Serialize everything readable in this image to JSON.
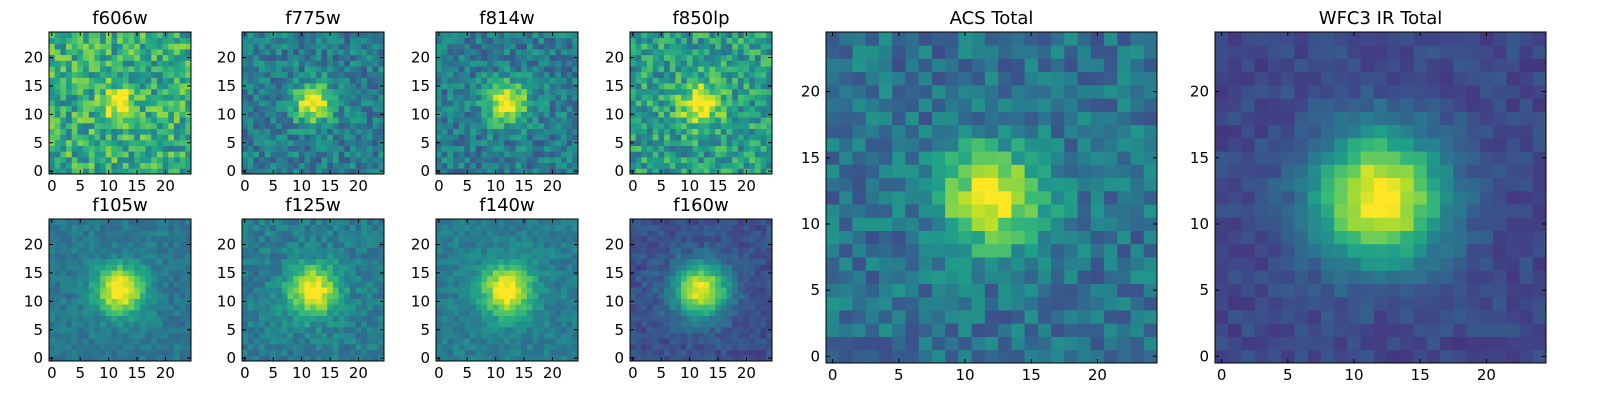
{
  "chart_data": [
    {
      "type": "heatmap",
      "title": "f606w",
      "xticks": [
        "0",
        "5",
        "10",
        "15",
        "20"
      ],
      "yticks": [
        "0",
        "5",
        "10",
        "15",
        "20"
      ],
      "xlim": [
        0,
        25
      ],
      "ylim": [
        0,
        25
      ],
      "grid": false,
      "center": [
        12,
        12
      ],
      "peak": 0.45,
      "sigma": 1.9,
      "base": 0.62,
      "noise": 0.22,
      "seed": 11
    },
    {
      "type": "heatmap",
      "title": "f775w",
      "xticks": [
        "0",
        "5",
        "10",
        "15",
        "20"
      ],
      "yticks": [
        "0",
        "5",
        "10",
        "15",
        "20"
      ],
      "xlim": [
        0,
        25
      ],
      "ylim": [
        0,
        25
      ],
      "grid": false,
      "center": [
        12,
        12
      ],
      "peak": 0.62,
      "sigma": 2.4,
      "base": 0.42,
      "noise": 0.16,
      "seed": 23
    },
    {
      "type": "heatmap",
      "title": "f814w",
      "xticks": [
        "0",
        "5",
        "10",
        "15",
        "20"
      ],
      "yticks": [
        "0",
        "5",
        "10",
        "15",
        "20"
      ],
      "xlim": [
        0,
        25
      ],
      "ylim": [
        0,
        25
      ],
      "grid": false,
      "center": [
        12,
        12
      ],
      "peak": 0.6,
      "sigma": 2.6,
      "base": 0.42,
      "noise": 0.16,
      "seed": 37
    },
    {
      "type": "heatmap",
      "title": "f850lp",
      "xticks": [
        "0",
        "5",
        "10",
        "15",
        "20"
      ],
      "yticks": [
        "0",
        "5",
        "10",
        "15",
        "20"
      ],
      "xlim": [
        0,
        25
      ],
      "ylim": [
        0,
        25
      ],
      "grid": false,
      "center": [
        12,
        12
      ],
      "peak": 0.5,
      "sigma": 2.6,
      "base": 0.55,
      "noise": 0.2,
      "seed": 41
    },
    {
      "type": "heatmap",
      "title": "f105w",
      "xticks": [
        "0",
        "5",
        "10",
        "15",
        "20"
      ],
      "yticks": [
        "0",
        "5",
        "10",
        "15",
        "20"
      ],
      "xlim": [
        0,
        25
      ],
      "ylim": [
        0,
        25
      ],
      "grid": false,
      "center": [
        12,
        12
      ],
      "peak": 0.65,
      "sigma": 3.0,
      "base": 0.4,
      "noise": 0.08,
      "seed": 53
    },
    {
      "type": "heatmap",
      "title": "f125w",
      "xticks": [
        "0",
        "5",
        "10",
        "15",
        "20"
      ],
      "yticks": [
        "0",
        "5",
        "10",
        "15",
        "20"
      ],
      "xlim": [
        0,
        25
      ],
      "ylim": [
        0,
        25
      ],
      "grid": false,
      "center": [
        12,
        12
      ],
      "peak": 0.62,
      "sigma": 3.1,
      "base": 0.42,
      "noise": 0.1,
      "seed": 67
    },
    {
      "type": "heatmap",
      "title": "f140w",
      "xticks": [
        "0",
        "5",
        "10",
        "15",
        "20"
      ],
      "yticks": [
        "0",
        "5",
        "10",
        "15",
        "20"
      ],
      "xlim": [
        0,
        25
      ],
      "ylim": [
        0,
        25
      ],
      "grid": false,
      "center": [
        12,
        12
      ],
      "peak": 0.62,
      "sigma": 3.2,
      "base": 0.42,
      "noise": 0.08,
      "seed": 71
    },
    {
      "type": "heatmap",
      "title": "f160w",
      "xticks": [
        "0",
        "5",
        "10",
        "15",
        "20"
      ],
      "yticks": [
        "0",
        "5",
        "10",
        "15",
        "20"
      ],
      "xlim": [
        0,
        25
      ],
      "ylim": [
        0,
        25
      ],
      "grid": false,
      "center": [
        12,
        12
      ],
      "peak": 0.75,
      "sigma": 3.3,
      "base": 0.25,
      "noise": 0.07,
      "seed": 83
    },
    {
      "type": "heatmap",
      "title": "ACS Total",
      "xticks": [
        "0",
        "5",
        "10",
        "15",
        "20"
      ],
      "yticks": [
        "0",
        "5",
        "10",
        "15",
        "20"
      ],
      "xlim": [
        0,
        25
      ],
      "ylim": [
        0,
        25
      ],
      "grid": false,
      "center": [
        12,
        12
      ],
      "peak": 0.65,
      "sigma": 2.6,
      "base": 0.38,
      "noise": 0.14,
      "seed": 97
    },
    {
      "type": "heatmap",
      "title": "WFC3 IR Total",
      "xticks": [
        "0",
        "5",
        "10",
        "15",
        "20"
      ],
      "yticks": [
        "0",
        "5",
        "10",
        "15",
        "20"
      ],
      "xlim": [
        0,
        25
      ],
      "ylim": [
        0,
        25
      ],
      "grid": false,
      "center": [
        12,
        12
      ],
      "peak": 0.82,
      "sigma": 3.4,
      "base": 0.22,
      "noise": 0.06,
      "seed": 101
    }
  ],
  "colormap": [
    "#440154",
    "#482878",
    "#3e4989",
    "#31688e",
    "#26828e",
    "#1f9e89",
    "#35b779",
    "#6ece58",
    "#b5de2b",
    "#fde725"
  ]
}
